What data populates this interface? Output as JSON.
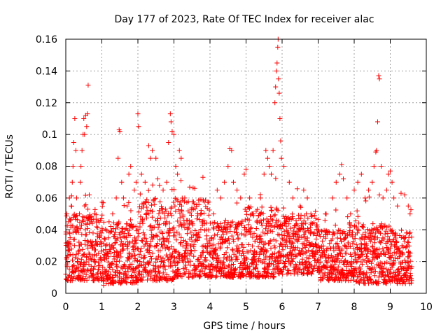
{
  "chart_data": {
    "type": "scatter",
    "title": "Day 177 of 2023, Rate Of TEC Index for receiver alac",
    "xlabel": "GPS time / hours",
    "ylabel": "ROTI / TECUs",
    "xlim": [
      0,
      10
    ],
    "ylim": [
      0,
      0.16
    ],
    "x_ticks": [
      "0",
      "1",
      "2",
      "3",
      "4",
      "5",
      "6",
      "7",
      "8",
      "9",
      "10"
    ],
    "y_ticks": [
      "0",
      "0.02",
      "0.04",
      "0.06",
      "0.08",
      "0.1",
      "0.12",
      "0.14",
      "0.16"
    ],
    "grid": true,
    "marker": "plus",
    "color": "#ff0000",
    "series": [
      {
        "name": "ROTI",
        "points": [
          [
            0.0,
            0.012
          ],
          [
            0.03,
            0.05
          ],
          [
            0.05,
            0.03
          ],
          [
            0.08,
            0.045
          ],
          [
            0.1,
            0.06
          ],
          [
            0.12,
            0.035
          ],
          [
            0.15,
            0.055
          ],
          [
            0.18,
            0.07
          ],
          [
            0.2,
            0.08
          ],
          [
            0.22,
            0.095
          ],
          [
            0.25,
            0.11
          ],
          [
            0.28,
            0.09
          ],
          [
            0.3,
            0.06
          ],
          [
            0.33,
            0.04
          ],
          [
            0.35,
            0.025
          ],
          [
            0.38,
            0.05
          ],
          [
            0.4,
            0.07
          ],
          [
            0.42,
            0.08
          ],
          [
            0.45,
            0.09
          ],
          [
            0.48,
            0.1
          ],
          [
            0.5,
            0.11
          ],
          [
            0.52,
            0.1
          ],
          [
            0.55,
            0.112
          ],
          [
            0.58,
            0.105
          ],
          [
            0.6,
            0.113
          ],
          [
            0.62,
            0.131
          ],
          [
            0.65,
            0.062
          ],
          [
            0.7,
            0.045
          ],
          [
            0.75,
            0.03
          ],
          [
            0.8,
            0.02
          ],
          [
            0.9,
            0.015
          ],
          [
            1.0,
            0.01
          ],
          [
            1.05,
            0.005
          ],
          [
            1.1,
            0.03
          ],
          [
            1.2,
            0.045
          ],
          [
            1.3,
            0.05
          ],
          [
            1.4,
            0.06
          ],
          [
            1.45,
            0.085
          ],
          [
            1.48,
            0.103
          ],
          [
            1.5,
            0.102
          ],
          [
            1.55,
            0.07
          ],
          [
            1.6,
            0.06
          ],
          [
            1.7,
            0.055
          ],
          [
            1.75,
            0.075
          ],
          [
            1.8,
            0.08
          ],
          [
            1.9,
            0.065
          ],
          [
            1.95,
            0.07
          ],
          [
            2.0,
            0.113
          ],
          [
            2.02,
            0.105
          ],
          [
            2.1,
            0.075
          ],
          [
            2.2,
            0.07
          ],
          [
            2.3,
            0.093
          ],
          [
            2.35,
            0.085
          ],
          [
            2.4,
            0.09
          ],
          [
            2.5,
            0.085
          ],
          [
            2.55,
            0.072
          ],
          [
            2.6,
            0.068
          ],
          [
            2.7,
            0.065
          ],
          [
            2.8,
            0.07
          ],
          [
            2.85,
            0.095
          ],
          [
            2.9,
            0.113
          ],
          [
            2.92,
            0.108
          ],
          [
            2.95,
            0.102
          ],
          [
            3.0,
            0.1
          ],
          [
            3.05,
            0.08
          ],
          [
            3.1,
            0.075
          ],
          [
            3.15,
            0.09
          ],
          [
            3.2,
            0.085
          ],
          [
            3.3,
            0.06
          ],
          [
            3.5,
            0.045
          ],
          [
            3.7,
            0.035
          ],
          [
            3.9,
            0.04
          ],
          [
            4.0,
            0.03
          ],
          [
            4.1,
            0.05
          ],
          [
            4.2,
            0.065
          ],
          [
            4.3,
            0.06
          ],
          [
            4.4,
            0.07
          ],
          [
            4.5,
            0.08
          ],
          [
            4.55,
            0.091
          ],
          [
            4.6,
            0.09
          ],
          [
            4.65,
            0.07
          ],
          [
            4.75,
            0.065
          ],
          [
            4.85,
            0.06
          ],
          [
            4.95,
            0.075
          ],
          [
            5.0,
            0.078
          ],
          [
            5.1,
            0.06
          ],
          [
            5.2,
            0.05
          ],
          [
            5.3,
            0.045
          ],
          [
            5.4,
            0.06
          ],
          [
            5.5,
            0.075
          ],
          [
            5.55,
            0.09
          ],
          [
            5.6,
            0.085
          ],
          [
            5.65,
            0.08
          ],
          [
            5.7,
            0.075
          ],
          [
            5.75,
            0.09
          ],
          [
            5.8,
            0.12
          ],
          [
            5.82,
            0.13
          ],
          [
            5.84,
            0.14
          ],
          [
            5.86,
            0.145
          ],
          [
            5.88,
            0.155
          ],
          [
            5.89,
            0.16
          ],
          [
            5.9,
            0.135
          ],
          [
            5.92,
            0.126
          ],
          [
            5.94,
            0.11
          ],
          [
            5.96,
            0.096
          ],
          [
            5.98,
            0.085
          ],
          [
            6.05,
            0.08
          ],
          [
            6.2,
            0.07
          ],
          [
            6.3,
            0.06
          ],
          [
            6.5,
            0.055
          ],
          [
            6.6,
            0.065
          ],
          [
            6.7,
            0.06
          ],
          [
            6.8,
            0.05
          ],
          [
            7.0,
            0.04
          ],
          [
            7.2,
            0.05
          ],
          [
            7.4,
            0.06
          ],
          [
            7.5,
            0.07
          ],
          [
            7.6,
            0.075
          ],
          [
            7.65,
            0.081
          ],
          [
            7.7,
            0.072
          ],
          [
            7.8,
            0.06
          ],
          [
            7.9,
            0.05
          ],
          [
            8.0,
            0.065
          ],
          [
            8.1,
            0.07
          ],
          [
            8.2,
            0.075
          ],
          [
            8.3,
            0.06
          ],
          [
            8.4,
            0.065
          ],
          [
            8.5,
            0.07
          ],
          [
            8.55,
            0.08
          ],
          [
            8.6,
            0.089
          ],
          [
            8.62,
            0.09
          ],
          [
            8.65,
            0.108
          ],
          [
            8.68,
            0.137
          ],
          [
            8.7,
            0.135
          ],
          [
            8.75,
            0.08
          ],
          [
            8.8,
            0.06
          ],
          [
            8.9,
            0.065
          ],
          [
            8.95,
            0.075
          ],
          [
            9.0,
            0.077
          ],
          [
            9.05,
            0.07
          ],
          [
            9.1,
            0.06
          ],
          [
            9.2,
            0.055
          ],
          [
            9.3,
            0.063
          ],
          [
            9.4,
            0.062
          ],
          [
            9.5,
            0.055
          ],
          [
            9.55,
            0.05
          ]
        ],
        "dense_band": {
          "x_range": [
            0,
            9.6
          ],
          "by_hour_low": [
            0.008,
            0.006,
            0.008,
            0.01,
            0.01,
            0.01,
            0.012,
            0.008,
            0.006,
            0.006
          ],
          "by_hour_high": [
            0.05,
            0.045,
            0.06,
            0.06,
            0.045,
            0.055,
            0.05,
            0.04,
            0.045,
            0.04
          ]
        }
      }
    ]
  }
}
